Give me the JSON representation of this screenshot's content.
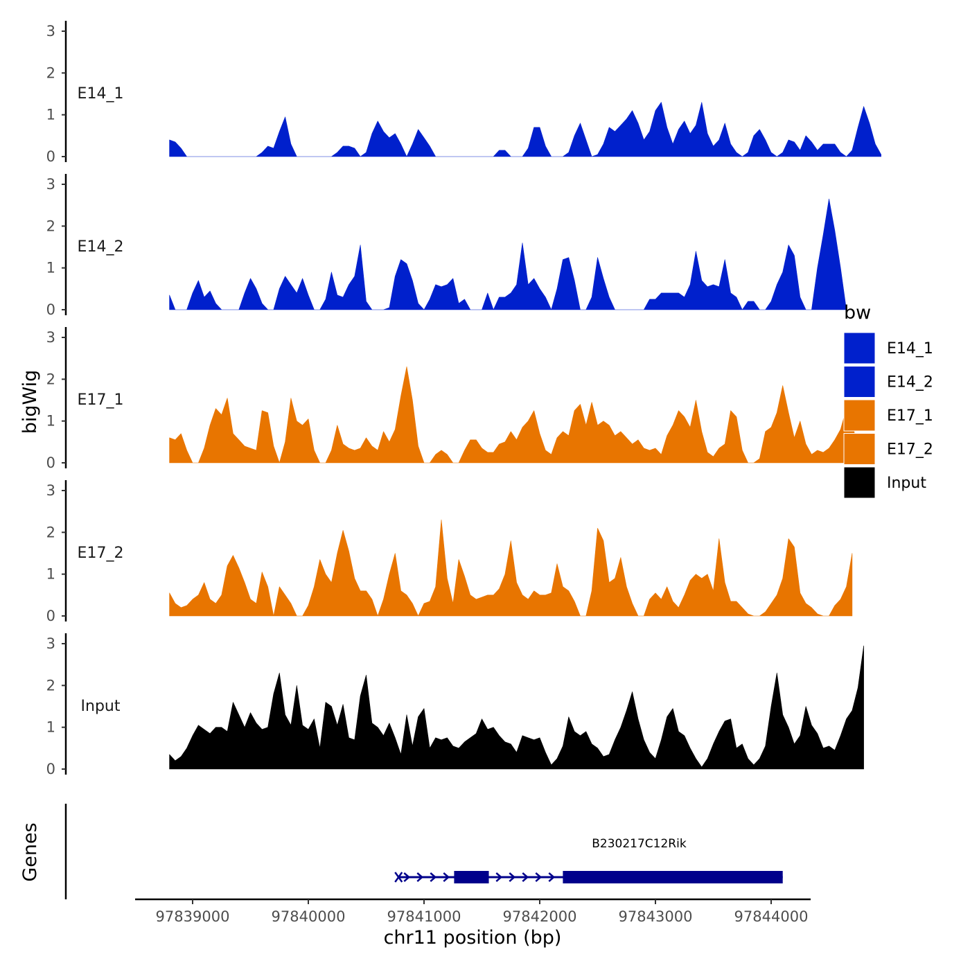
{
  "chart_data": {
    "type": "area",
    "ylabel": "bigWig",
    "xlabel": "chr11 position (bp)",
    "ylim": [
      0,
      3
    ],
    "y_ticks": [
      0,
      1,
      2,
      3
    ],
    "x_range": [
      97838400,
      97844400
    ],
    "x_ticks": [
      97839000,
      97840000,
      97841000,
      97842000,
      97843000,
      97844000
    ],
    "x_tick_labels": [
      "97839000",
      "97840000",
      "97841000",
      "97842000",
      "97843000",
      "97844000"
    ],
    "x_start": 97838800,
    "x_step": 50,
    "legend": {
      "title": "bw",
      "entries": [
        {
          "label": "E14_1",
          "color": "#0020CC"
        },
        {
          "label": "E14_2",
          "color": "#0020CC"
        },
        {
          "label": "E17_1",
          "color": "#E87500"
        },
        {
          "label": "E17_2",
          "color": "#E87500"
        },
        {
          "label": "Input",
          "color": "#000000"
        }
      ]
    },
    "series": [
      {
        "name": "E14_1",
        "color": "#0020CC",
        "values": [
          0.4,
          0.35,
          0.2,
          0,
          0,
          0,
          0,
          0,
          0,
          0,
          0,
          0,
          0,
          0,
          0,
          0,
          0.1,
          0.25,
          0.2,
          0.6,
          0.95,
          0.3,
          0,
          0,
          0,
          0,
          0,
          0,
          0,
          0.1,
          0.25,
          0.25,
          0.2,
          0,
          0.1,
          0.55,
          0.85,
          0.6,
          0.45,
          0.55,
          0.3,
          0,
          0.3,
          0.65,
          0.45,
          0.25,
          0,
          0,
          0,
          0,
          0,
          0,
          0,
          0,
          0,
          0,
          0,
          0.15,
          0.15,
          0,
          0,
          0,
          0.2,
          0.7,
          0.7,
          0.25,
          0,
          0,
          0,
          0.1,
          0.5,
          0.8,
          0.4,
          0,
          0.05,
          0.3,
          0.7,
          0.6,
          0.75,
          0.9,
          1.1,
          0.8,
          0.4,
          0.6,
          1.1,
          1.3,
          0.7,
          0.3,
          0.65,
          0.85,
          0.55,
          0.75,
          1.3,
          0.55,
          0.25,
          0.4,
          0.8,
          0.3,
          0.1,
          0,
          0.1,
          0.5,
          0.65,
          0.4,
          0.1,
          0,
          0.1,
          0.4,
          0.35,
          0.15,
          0.5,
          0.35,
          0.15,
          0.3,
          0.3,
          0.3,
          0.1,
          0,
          0.15,
          0.7,
          1.2,
          0.8,
          0.3,
          0.05
        ]
      },
      {
        "name": "E14_2",
        "color": "#0020CC",
        "values": [
          0.35,
          0,
          0,
          0,
          0.4,
          0.7,
          0.3,
          0.45,
          0.15,
          0,
          0,
          0,
          0,
          0.4,
          0.75,
          0.5,
          0.15,
          0,
          0,
          0.5,
          0.8,
          0.6,
          0.4,
          0.75,
          0.35,
          0,
          0,
          0.25,
          0.9,
          0.35,
          0.3,
          0.6,
          0.8,
          1.55,
          0.2,
          0,
          0,
          0,
          0.05,
          0.8,
          1.2,
          1.1,
          0.7,
          0.15,
          0,
          0.25,
          0.6,
          0.55,
          0.6,
          0.75,
          0.15,
          0.25,
          0,
          0,
          0,
          0.4,
          0,
          0.3,
          0.3,
          0.4,
          0.6,
          1.6,
          0.6,
          0.75,
          0.5,
          0.3,
          0,
          0.5,
          1.2,
          1.25,
          0.7,
          0,
          0,
          0.3,
          1.25,
          0.75,
          0.3,
          0,
          0,
          0,
          0,
          0,
          0,
          0.25,
          0.25,
          0.4,
          0.4,
          0.4,
          0.4,
          0.3,
          0.6,
          1.4,
          0.7,
          0.55,
          0.6,
          0.55,
          1.2,
          0.4,
          0.3,
          0,
          0.2,
          0.2,
          0,
          0,
          0.2,
          0.6,
          0.9,
          1.55,
          1.3,
          0.3,
          0,
          0,
          1.0,
          1.8,
          2.65,
          1.9,
          1.0,
          0
        ]
      },
      {
        "name": "E17_1",
        "color": "#E87500",
        "values": [
          0.6,
          0.55,
          0.7,
          0.3,
          0,
          0,
          0.35,
          0.9,
          1.3,
          1.15,
          1.55,
          0.7,
          0.55,
          0.4,
          0.35,
          0.3,
          1.25,
          1.2,
          0.4,
          0,
          0.5,
          1.55,
          1.0,
          0.9,
          1.05,
          0.3,
          0,
          0,
          0.3,
          0.9,
          0.45,
          0.35,
          0.3,
          0.35,
          0.6,
          0.4,
          0.3,
          0.75,
          0.5,
          0.8,
          1.6,
          2.3,
          1.5,
          0.4,
          0,
          0,
          0.2,
          0.3,
          0.2,
          0,
          0,
          0.3,
          0.55,
          0.55,
          0.35,
          0.25,
          0.25,
          0.45,
          0.5,
          0.75,
          0.55,
          0.85,
          1.0,
          1.25,
          0.7,
          0.3,
          0.2,
          0.6,
          0.75,
          0.65,
          1.25,
          1.4,
          0.9,
          1.45,
          0.9,
          1.0,
          0.9,
          0.65,
          0.75,
          0.6,
          0.45,
          0.55,
          0.35,
          0.3,
          0.35,
          0.2,
          0.65,
          0.9,
          1.25,
          1.1,
          0.85,
          1.5,
          0.75,
          0.25,
          0.15,
          0.35,
          0.45,
          1.25,
          1.1,
          0.3,
          0,
          0,
          0.1,
          0.75,
          0.85,
          1.2,
          1.85,
          1.2,
          0.6,
          1.0,
          0.45,
          0.2,
          0.3,
          0.25,
          0.35,
          0.55,
          0.8,
          1.3,
          1.15,
          0
        ]
      },
      {
        "name": "E17_2",
        "color": "#E87500",
        "values": [
          0.55,
          0.3,
          0.2,
          0.25,
          0.4,
          0.5,
          0.8,
          0.4,
          0.3,
          0.5,
          1.2,
          1.45,
          1.15,
          0.8,
          0.4,
          0.3,
          1.05,
          0.7,
          0,
          0.7,
          0.5,
          0.3,
          0,
          0,
          0.25,
          0.7,
          1.35,
          1.0,
          0.8,
          1.5,
          2.05,
          1.55,
          0.9,
          0.6,
          0.6,
          0.4,
          0,
          0.4,
          1.0,
          1.5,
          0.6,
          0.5,
          0.3,
          0,
          0.3,
          0.35,
          0.7,
          2.3,
          0.9,
          0.3,
          1.35,
          0.95,
          0.5,
          0.4,
          0.45,
          0.5,
          0.5,
          0.65,
          1.0,
          1.8,
          0.8,
          0.5,
          0.4,
          0.6,
          0.5,
          0.5,
          0.55,
          1.25,
          0.7,
          0.6,
          0.35,
          0,
          0,
          0.6,
          2.1,
          1.8,
          0.8,
          0.9,
          1.4,
          0.7,
          0.3,
          0,
          0,
          0.4,
          0.55,
          0.4,
          0.7,
          0.35,
          0.2,
          0.5,
          0.85,
          1.0,
          0.9,
          1.0,
          0.6,
          1.85,
          0.8,
          0.35,
          0.35,
          0.2,
          0.05,
          0,
          0,
          0.1,
          0.3,
          0.5,
          0.9,
          1.85,
          1.65,
          0.55,
          0.3,
          0.2,
          0.05,
          0,
          0,
          0.25,
          0.4,
          0.7,
          1.5
        ]
      },
      {
        "name": "Input",
        "color": "#000000",
        "values": [
          0.35,
          0.2,
          0.3,
          0.5,
          0.8,
          1.05,
          0.95,
          0.85,
          1.0,
          1.0,
          0.9,
          1.6,
          1.3,
          1.0,
          1.35,
          1.1,
          0.95,
          1.0,
          1.8,
          2.3,
          1.3,
          1.05,
          2.0,
          1.05,
          0.95,
          1.2,
          0.5,
          1.6,
          1.5,
          1.05,
          1.55,
          0.75,
          0.7,
          1.75,
          2.25,
          1.1,
          1.0,
          0.8,
          1.1,
          0.75,
          0.35,
          1.3,
          0.55,
          1.25,
          1.45,
          0.5,
          0.75,
          0.7,
          0.75,
          0.55,
          0.5,
          0.65,
          0.75,
          0.85,
          1.2,
          0.95,
          1.0,
          0.8,
          0.65,
          0.6,
          0.4,
          0.8,
          0.75,
          0.7,
          0.75,
          0.4,
          0.1,
          0.25,
          0.55,
          1.25,
          0.9,
          0.8,
          0.9,
          0.6,
          0.5,
          0.3,
          0.35,
          0.7,
          1.0,
          1.4,
          1.85,
          1.2,
          0.7,
          0.4,
          0.25,
          0.7,
          1.25,
          1.45,
          0.9,
          0.8,
          0.5,
          0.25,
          0.05,
          0.25,
          0.6,
          0.9,
          1.15,
          1.2,
          0.5,
          0.6,
          0.25,
          0.1,
          0.25,
          0.55,
          1.5,
          2.3,
          1.3,
          1.0,
          0.6,
          0.8,
          1.5,
          1.05,
          0.85,
          0.5,
          0.55,
          0.45,
          0.8,
          1.2,
          1.4,
          1.95,
          2.95
        ]
      }
    ],
    "gene_track": {
      "label": "Genes",
      "gene_name": "B230217C12Rik",
      "color": "#00008B",
      "start": 97840780,
      "end": 97844100,
      "exons": [
        [
          97841260,
          97841560
        ],
        [
          97842200,
          97844100
        ]
      ],
      "strand": "+"
    }
  }
}
